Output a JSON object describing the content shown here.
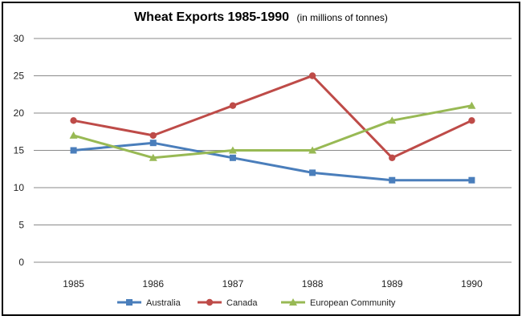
{
  "chart_data": {
    "type": "line",
    "title": "Wheat Exports 1985-1990",
    "subtitle": "(in millions of tonnes)",
    "xlabel": "",
    "ylabel": "",
    "categories": [
      "1985",
      "1986",
      "1987",
      "1988",
      "1989",
      "1990"
    ],
    "ylim": [
      0,
      30
    ],
    "yticks": [
      0,
      5,
      10,
      15,
      20,
      25,
      30
    ],
    "grid": true,
    "legend_position": "bottom",
    "series": [
      {
        "name": "Australia",
        "color": "#4a7ebb",
        "marker": "square",
        "values": [
          15,
          16,
          14,
          12,
          11,
          11
        ]
      },
      {
        "name": "Canada",
        "color": "#be4b48",
        "marker": "circle",
        "values": [
          19,
          17,
          21,
          25,
          14,
          19
        ]
      },
      {
        "name": "European Community",
        "color": "#98b954",
        "marker": "triangle",
        "values": [
          17,
          14,
          15,
          15,
          19,
          21
        ]
      }
    ]
  }
}
